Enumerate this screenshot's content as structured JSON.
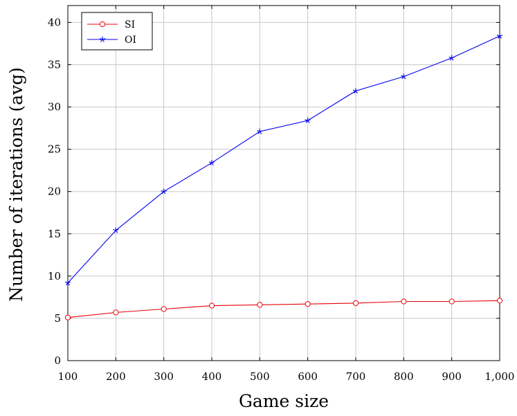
{
  "chart_data": {
    "type": "line",
    "title": "",
    "xlabel": "Game size",
    "ylabel": "Number of iterations (avg)",
    "x": [
      100,
      200,
      300,
      400,
      500,
      600,
      700,
      800,
      900,
      1000
    ],
    "xlim": [
      100,
      1000
    ],
    "ylim": [
      0,
      42
    ],
    "x_ticks": [
      100,
      200,
      300,
      400,
      500,
      600,
      700,
      800,
      900,
      1000
    ],
    "x_tick_labels": [
      "100",
      "200",
      "300",
      "400",
      "500",
      "600",
      "700",
      "800",
      "900",
      "1,000"
    ],
    "y_ticks": [
      0,
      5,
      10,
      15,
      20,
      25,
      30,
      35,
      40
    ],
    "y_tick_labels": [
      "0",
      "5",
      "10",
      "15",
      "20",
      "25",
      "30",
      "35",
      "40"
    ],
    "grid": true,
    "legend_position": "top-left",
    "series": [
      {
        "name": "SI",
        "color": "#e8000b",
        "marker": "circle",
        "values": [
          5.1,
          5.7,
          6.1,
          6.5,
          6.6,
          6.7,
          6.8,
          7.0,
          7.0,
          7.1
        ]
      },
      {
        "name": "OI",
        "color": "#0000ee",
        "marker": "star",
        "values": [
          9.2,
          15.4,
          20.0,
          23.4,
          27.1,
          28.4,
          31.9,
          33.6,
          35.8,
          38.4
        ]
      }
    ]
  }
}
